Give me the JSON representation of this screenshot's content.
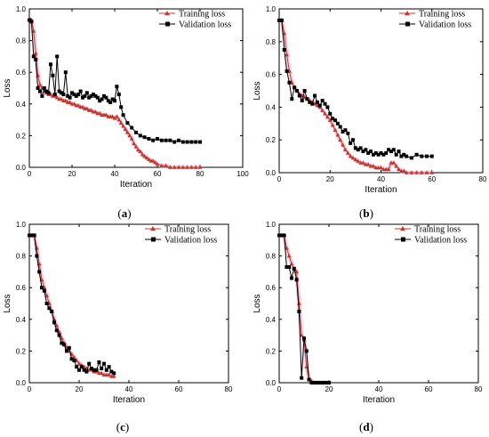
{
  "chart_data": [
    {
      "type": "line",
      "caption": "a",
      "xlabel": "Iteration",
      "ylabel": "Loss",
      "xlim": [
        0,
        100
      ],
      "ylim": [
        0,
        1.0
      ],
      "xticks": [
        0,
        20,
        40,
        60,
        80,
        100
      ],
      "yticks": [
        0.0,
        0.2,
        0.4,
        0.6,
        0.8,
        1.0
      ],
      "legend": "top-right",
      "series": [
        {
          "name": "Training loss",
          "color": "#c0392b",
          "marker": "triangle",
          "x": [
            0,
            1,
            2,
            3,
            4,
            5,
            6,
            7,
            8,
            9,
            10,
            11,
            12,
            13,
            14,
            15,
            16,
            17,
            18,
            19,
            20,
            21,
            22,
            23,
            24,
            25,
            26,
            27,
            28,
            29,
            30,
            31,
            32,
            33,
            34,
            35,
            36,
            37,
            38,
            39,
            40,
            41,
            42,
            43,
            44,
            45,
            46,
            47,
            48,
            49,
            50,
            51,
            52,
            53,
            54,
            55,
            56,
            57,
            58,
            59,
            60,
            62,
            64,
            66,
            68,
            70,
            72,
            74,
            76,
            78,
            80
          ],
          "values": [
            0.93,
            0.93,
            0.86,
            0.72,
            0.58,
            0.52,
            0.5,
            0.48,
            0.47,
            0.46,
            0.46,
            0.45,
            0.45,
            0.44,
            0.43,
            0.43,
            0.42,
            0.42,
            0.41,
            0.41,
            0.4,
            0.4,
            0.39,
            0.39,
            0.38,
            0.38,
            0.37,
            0.37,
            0.36,
            0.36,
            0.35,
            0.35,
            0.34,
            0.34,
            0.33,
            0.33,
            0.33,
            0.32,
            0.32,
            0.32,
            0.31,
            0.32,
            0.3,
            0.28,
            0.26,
            0.24,
            0.22,
            0.2,
            0.18,
            0.15,
            0.13,
            0.11,
            0.1,
            0.08,
            0.07,
            0.06,
            0.05,
            0.04,
            0.04,
            0.03,
            0.02,
            0.01,
            0.01,
            0.0,
            0.0,
            0.0,
            0.0,
            0.0,
            0.0,
            0.0,
            0.0
          ]
        },
        {
          "name": "Validation loss",
          "color": "#000000",
          "marker": "square",
          "x": [
            0,
            1,
            2,
            3,
            4,
            5,
            6,
            7,
            8,
            9,
            10,
            11,
            12,
            13,
            14,
            15,
            16,
            17,
            18,
            19,
            20,
            21,
            22,
            23,
            24,
            25,
            26,
            27,
            28,
            29,
            30,
            31,
            32,
            33,
            34,
            35,
            36,
            37,
            38,
            39,
            40,
            41,
            42,
            43,
            44,
            46,
            48,
            50,
            52,
            54,
            56,
            58,
            60,
            62,
            64,
            66,
            68,
            70,
            72,
            74,
            76,
            78,
            80
          ],
          "values": [
            0.93,
            0.92,
            0.7,
            0.68,
            0.5,
            0.48,
            0.45,
            0.5,
            0.48,
            0.47,
            0.65,
            0.58,
            0.46,
            0.7,
            0.48,
            0.47,
            0.46,
            0.6,
            0.45,
            0.44,
            0.47,
            0.46,
            0.45,
            0.46,
            0.48,
            0.44,
            0.45,
            0.47,
            0.44,
            0.45,
            0.46,
            0.45,
            0.44,
            0.42,
            0.43,
            0.45,
            0.44,
            0.42,
            0.41,
            0.43,
            0.42,
            0.51,
            0.46,
            0.38,
            0.33,
            0.28,
            0.25,
            0.22,
            0.2,
            0.19,
            0.18,
            0.17,
            0.18,
            0.17,
            0.17,
            0.17,
            0.16,
            0.17,
            0.16,
            0.16,
            0.16,
            0.16,
            0.16
          ]
        }
      ]
    },
    {
      "type": "line",
      "caption": "b",
      "xlabel": "Iteration",
      "ylabel": "Loss",
      "xlim": [
        0,
        80
      ],
      "ylim": [
        0,
        1.0
      ],
      "xticks": [
        0,
        20,
        40,
        60,
        80
      ],
      "yticks": [
        0.0,
        0.2,
        0.4,
        0.6,
        0.8,
        1.0
      ],
      "legend": "top-right",
      "series": [
        {
          "name": "Training loss",
          "color": "#c0392b",
          "marker": "triangle",
          "x": [
            0,
            1,
            2,
            3,
            4,
            5,
            6,
            7,
            8,
            9,
            10,
            11,
            12,
            13,
            14,
            15,
            16,
            17,
            18,
            19,
            20,
            21,
            22,
            23,
            24,
            25,
            26,
            27,
            28,
            29,
            30,
            31,
            32,
            33,
            34,
            35,
            36,
            37,
            38,
            39,
            40,
            41,
            42,
            43,
            44,
            45,
            46,
            47,
            48,
            49,
            50,
            52,
            54,
            56,
            58,
            60
          ],
          "values": [
            0.93,
            0.93,
            0.85,
            0.72,
            0.62,
            0.55,
            0.52,
            0.5,
            0.48,
            0.47,
            0.46,
            0.45,
            0.44,
            0.43,
            0.42,
            0.41,
            0.4,
            0.38,
            0.36,
            0.34,
            0.32,
            0.29,
            0.26,
            0.23,
            0.2,
            0.17,
            0.14,
            0.12,
            0.1,
            0.09,
            0.08,
            0.07,
            0.06,
            0.06,
            0.05,
            0.05,
            0.04,
            0.04,
            0.03,
            0.03,
            0.03,
            0.02,
            0.02,
            0.02,
            0.06,
            0.06,
            0.04,
            0.02,
            0.01,
            0.01,
            0.0,
            0.0,
            0.0,
            0.0,
            0.0,
            0.0
          ]
        },
        {
          "name": "Validation loss",
          "color": "#000000",
          "marker": "square",
          "x": [
            0,
            1,
            2,
            3,
            4,
            5,
            6,
            7,
            8,
            9,
            10,
            11,
            12,
            13,
            14,
            15,
            16,
            17,
            18,
            19,
            20,
            21,
            22,
            23,
            24,
            25,
            26,
            27,
            28,
            29,
            30,
            31,
            32,
            33,
            34,
            35,
            36,
            37,
            38,
            39,
            40,
            41,
            42,
            43,
            44,
            45,
            46,
            47,
            48,
            49,
            50,
            52,
            54,
            56,
            58,
            60
          ],
          "values": [
            0.93,
            0.93,
            0.75,
            0.62,
            0.55,
            0.45,
            0.52,
            0.5,
            0.47,
            0.44,
            0.5,
            0.45,
            0.43,
            0.42,
            0.47,
            0.43,
            0.41,
            0.44,
            0.42,
            0.4,
            0.36,
            0.33,
            0.32,
            0.3,
            0.28,
            0.25,
            0.26,
            0.24,
            0.18,
            0.2,
            0.15,
            0.14,
            0.15,
            0.13,
            0.14,
            0.12,
            0.13,
            0.11,
            0.12,
            0.11,
            0.12,
            0.11,
            0.12,
            0.14,
            0.13,
            0.14,
            0.11,
            0.13,
            0.1,
            0.11,
            0.1,
            0.09,
            0.11,
            0.1,
            0.1,
            0.1
          ]
        }
      ]
    },
    {
      "type": "line",
      "caption": "c",
      "xlabel": "Iteration",
      "ylabel": "Loss",
      "xlim": [
        0,
        80
      ],
      "ylim": [
        0,
        1.0
      ],
      "xticks": [
        0,
        20,
        40,
        60,
        80
      ],
      "yticks": [
        0.0,
        0.2,
        0.4,
        0.6,
        0.8,
        1.0
      ],
      "legend": "top-right",
      "series": [
        {
          "name": "Training loss",
          "color": "#c0392b",
          "marker": "triangle",
          "x": [
            0,
            1,
            2,
            3,
            4,
            5,
            6,
            7,
            8,
            9,
            10,
            11,
            12,
            13,
            14,
            15,
            16,
            17,
            18,
            19,
            20,
            21,
            22,
            23,
            24,
            25,
            26,
            27,
            28,
            29,
            30,
            31,
            32,
            33,
            34
          ],
          "values": [
            0.93,
            0.93,
            0.93,
            0.85,
            0.75,
            0.65,
            0.6,
            0.55,
            0.5,
            0.45,
            0.4,
            0.36,
            0.32,
            0.28,
            0.25,
            0.22,
            0.2,
            0.18,
            0.16,
            0.14,
            0.12,
            0.11,
            0.1,
            0.09,
            0.08,
            0.08,
            0.07,
            0.07,
            0.06,
            0.06,
            0.05,
            0.05,
            0.05,
            0.04,
            0.04
          ]
        },
        {
          "name": "Validation loss",
          "color": "#000000",
          "marker": "square",
          "x": [
            0,
            1,
            2,
            3,
            4,
            5,
            6,
            7,
            8,
            9,
            10,
            11,
            12,
            13,
            14,
            15,
            16,
            17,
            18,
            19,
            20,
            21,
            22,
            23,
            24,
            25,
            26,
            27,
            28,
            29,
            30,
            31,
            32,
            33,
            34
          ],
          "values": [
            0.93,
            0.93,
            0.93,
            0.8,
            0.7,
            0.6,
            0.58,
            0.5,
            0.47,
            0.45,
            0.38,
            0.33,
            0.3,
            0.25,
            0.24,
            0.2,
            0.22,
            0.15,
            0.14,
            0.1,
            0.08,
            0.1,
            0.08,
            0.07,
            0.12,
            0.09,
            0.08,
            0.08,
            0.13,
            0.09,
            0.12,
            0.08,
            0.1,
            0.07,
            0.06
          ]
        }
      ]
    },
    {
      "type": "line",
      "caption": "d",
      "xlabel": "Iteration",
      "ylabel": "Loss",
      "xlim": [
        0,
        80
      ],
      "ylim": [
        0,
        1.0
      ],
      "xticks": [
        0,
        20,
        40,
        60,
        80
      ],
      "yticks": [
        0.0,
        0.2,
        0.4,
        0.6,
        0.8,
        1.0
      ],
      "legend": "top-right",
      "series": [
        {
          "name": "Training loss",
          "color": "#c0392b",
          "marker": "triangle",
          "x": [
            0,
            1,
            2,
            3,
            4,
            5,
            6,
            7,
            8,
            9,
            10,
            11,
            12,
            13,
            14,
            15,
            16,
            17,
            18,
            19,
            20
          ],
          "values": [
            0.93,
            0.93,
            0.93,
            0.85,
            0.8,
            0.75,
            0.72,
            0.7,
            0.5,
            0.3,
            0.27,
            0.1,
            0.02,
            0.01,
            0.0,
            0.0,
            0.0,
            0.0,
            0.0,
            0.0,
            0.0
          ]
        },
        {
          "name": "Validation loss",
          "color": "#000000",
          "marker": "square",
          "x": [
            0,
            1,
            2,
            3,
            4,
            5,
            6,
            7,
            8,
            9,
            10,
            11,
            12,
            13,
            14,
            15,
            16,
            17,
            18,
            19,
            20
          ],
          "values": [
            0.93,
            0.93,
            0.93,
            0.73,
            0.73,
            0.66,
            0.72,
            0.65,
            0.45,
            0.03,
            0.28,
            0.2,
            0.02,
            0.0,
            0.0,
            0.0,
            0.0,
            0.0,
            0.0,
            0.0,
            0.0
          ]
        }
      ]
    }
  ]
}
